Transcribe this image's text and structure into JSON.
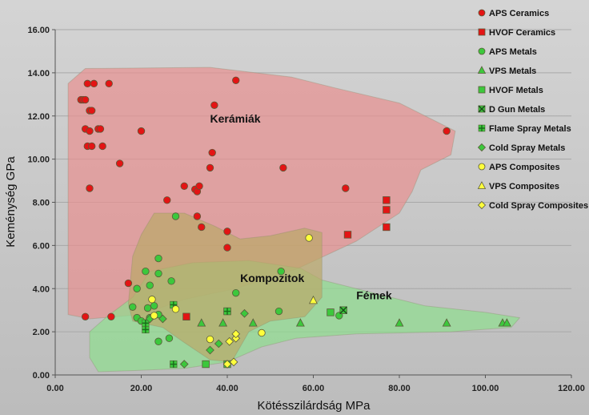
{
  "chart_data": {
    "type": "scatter",
    "title": "",
    "xlabel": "Kötésszilárdság MPa",
    "ylabel": "Keménység GPa",
    "xlim": [
      0,
      120
    ],
    "ylim": [
      0,
      16
    ],
    "x_ticks": [
      "0.00",
      "20.00",
      "40.00",
      "60.00",
      "80.00",
      "100.00",
      "120.00"
    ],
    "y_ticks": [
      "0.00",
      "2.00",
      "4.00",
      "6.00",
      "8.00",
      "10.00",
      "12.00",
      "14.00",
      "16.00"
    ],
    "grid": true,
    "legend_position": "right",
    "regions": [
      {
        "name": "Kerámiák",
        "color": "#e89090",
        "label_at": [
          36,
          11.7
        ],
        "polygon": [
          [
            7,
            14.2
          ],
          [
            36,
            14.25
          ],
          [
            55,
            13.8
          ],
          [
            65,
            13.3
          ],
          [
            80,
            12.6
          ],
          [
            93,
            11.3
          ],
          [
            92,
            10.2
          ],
          [
            85,
            9.5
          ],
          [
            83,
            8.5
          ],
          [
            80,
            7.5
          ],
          [
            70,
            6.2
          ],
          [
            56,
            4.9
          ],
          [
            42,
            4
          ],
          [
            30,
            3.5
          ],
          [
            20,
            2.8
          ],
          [
            8,
            2.6
          ],
          [
            3,
            2.8
          ],
          [
            3,
            8
          ],
          [
            3,
            13.5
          ]
        ]
      },
      {
        "name": "Fémek",
        "color": "#8fde8f",
        "label_at": [
          70,
          3.5
        ],
        "polygon": [
          [
            22,
            4.8
          ],
          [
            32,
            5.2
          ],
          [
            45,
            5.3
          ],
          [
            57,
            4.95
          ],
          [
            62,
            4.4
          ],
          [
            70,
            4
          ],
          [
            86,
            3.2
          ],
          [
            100,
            2.9
          ],
          [
            108,
            2.65
          ],
          [
            106,
            2.2
          ],
          [
            92,
            2
          ],
          [
            70,
            1.9
          ],
          [
            56,
            1.7
          ],
          [
            48,
            1.3
          ],
          [
            40,
            0.6
          ],
          [
            30,
            0.3
          ],
          [
            18,
            0.2
          ],
          [
            10,
            0.15
          ],
          [
            8,
            0.8
          ],
          [
            8,
            2
          ],
          [
            12,
            2.7
          ],
          [
            18,
            3.6
          ]
        ]
      },
      {
        "name": "Kompozitok",
        "color": "#bba868",
        "label_at": [
          43,
          4.3
        ],
        "polygon": [
          [
            20,
            6.5
          ],
          [
            23,
            7.5
          ],
          [
            30,
            7.5
          ],
          [
            37,
            6.9
          ],
          [
            43,
            6.3
          ],
          [
            50,
            6.45
          ],
          [
            58,
            6.8
          ],
          [
            62,
            6.6
          ],
          [
            62,
            5.5
          ],
          [
            62,
            4.8
          ],
          [
            62,
            3.6
          ],
          [
            58,
            2.7
          ],
          [
            50,
            2.5
          ],
          [
            45,
            2
          ],
          [
            41,
            0.6
          ],
          [
            36,
            0.7
          ],
          [
            30,
            1.5
          ],
          [
            25,
            2.2
          ],
          [
            18,
            2.5
          ],
          [
            17,
            3.3
          ],
          [
            18,
            5.5
          ]
        ]
      }
    ],
    "series": [
      {
        "name": "APS Ceramics",
        "marker": "circle",
        "color": "#e31414",
        "points": [
          [
            7,
            2.7
          ],
          [
            7,
            11.4
          ],
          [
            7.5,
            10.6
          ],
          [
            7.5,
            13.5
          ],
          [
            6,
            12.75
          ],
          [
            6.5,
            12.75
          ],
          [
            7,
            12.75
          ],
          [
            8,
            11.3
          ],
          [
            8,
            12.25
          ],
          [
            8.5,
            12.25
          ],
          [
            8.5,
            10.6
          ],
          [
            9,
            13.5
          ],
          [
            8,
            8.65
          ],
          [
            10,
            11.4
          ],
          [
            10.5,
            11.4
          ],
          [
            11,
            10.6
          ],
          [
            12.5,
            13.5
          ],
          [
            13,
            2.7
          ],
          [
            15,
            9.8
          ],
          [
            17,
            4.25
          ],
          [
            20,
            11.3
          ],
          [
            26,
            8.1
          ],
          [
            30,
            8.75
          ],
          [
            32.5,
            8.6
          ],
          [
            33,
            7.35
          ],
          [
            33,
            8.5
          ],
          [
            33.5,
            8.75
          ],
          [
            34,
            6.85
          ],
          [
            36,
            9.6
          ],
          [
            36.5,
            10.3
          ],
          [
            37,
            12.5
          ],
          [
            40,
            6.65
          ],
          [
            40,
            5.9
          ],
          [
            42,
            13.65
          ],
          [
            53,
            9.6
          ],
          [
            67.5,
            8.65
          ],
          [
            91,
            11.3
          ]
        ]
      },
      {
        "name": "HVOF Ceramics",
        "marker": "square",
        "color": "#e31414",
        "points": [
          [
            30.5,
            2.7
          ],
          [
            68,
            6.5
          ],
          [
            77,
            8.1
          ],
          [
            77,
            7.65
          ],
          [
            77,
            6.85
          ]
        ]
      },
      {
        "name": "APS Metals",
        "marker": "circle",
        "color": "#3cc83c",
        "points": [
          [
            18,
            3.15
          ],
          [
            19,
            4
          ],
          [
            19,
            2.65
          ],
          [
            20,
            2.5
          ],
          [
            21,
            4.8
          ],
          [
            21.5,
            3.1
          ],
          [
            22,
            4.15
          ],
          [
            22,
            2.65
          ],
          [
            23,
            3.2
          ],
          [
            24,
            2.8
          ],
          [
            24,
            5.4
          ],
          [
            24,
            4.7
          ],
          [
            24,
            1.55
          ],
          [
            26.5,
            1.7
          ],
          [
            27,
            4.35
          ],
          [
            28,
            7.35
          ],
          [
            42,
            3.8
          ],
          [
            52,
            2.95
          ],
          [
            52.5,
            4.8
          ],
          [
            66,
            2.75
          ]
        ]
      },
      {
        "name": "VPS Metals",
        "marker": "triangle",
        "color": "#3cc83c",
        "points": [
          [
            34,
            2.4
          ],
          [
            39,
            2.4
          ],
          [
            46,
            2.4
          ],
          [
            57,
            2.4
          ],
          [
            80,
            2.4
          ],
          [
            91,
            2.4
          ],
          [
            104,
            2.4
          ],
          [
            105,
            2.4
          ]
        ]
      },
      {
        "name": "HVOF Metals",
        "marker": "square",
        "color": "#3cc83c",
        "points": [
          [
            35,
            0.5
          ],
          [
            40,
            2.95
          ],
          [
            40,
            0.5
          ],
          [
            64,
            2.9
          ]
        ]
      },
      {
        "name": "D Gun Metals",
        "marker": "square-x",
        "color": "#3cc83c",
        "points": [
          [
            67,
            3
          ]
        ]
      },
      {
        "name": "Flame Spray Metals",
        "marker": "cross",
        "color": "#3cc83c",
        "points": [
          [
            21,
            2.1
          ],
          [
            21,
            2.4
          ],
          [
            27.5,
            0.5
          ],
          [
            27.5,
            3.25
          ],
          [
            40,
            2.95
          ]
        ]
      },
      {
        "name": "Cold Spray Metals",
        "marker": "diamond",
        "color": "#3cc83c",
        "points": [
          [
            22,
            2.6
          ],
          [
            25,
            2.6
          ],
          [
            30,
            0.5
          ],
          [
            36,
            1.15
          ],
          [
            38,
            1.45
          ],
          [
            44,
            2.85
          ]
        ]
      },
      {
        "name": "APS Composites",
        "marker": "circle",
        "color": "#ffff3c",
        "points": [
          [
            22.5,
            3.5
          ],
          [
            23,
            2.75
          ],
          [
            28,
            3.05
          ],
          [
            36,
            1.65
          ],
          [
            48,
            1.95
          ],
          [
            59,
            6.35
          ]
        ]
      },
      {
        "name": "VPS Composites",
        "marker": "triangle",
        "color": "#ffff3c",
        "points": [
          [
            60,
            3.45
          ]
        ]
      },
      {
        "name": "Cold Spray Composites",
        "marker": "diamond",
        "color": "#ffff3c",
        "points": [
          [
            40,
            0.5
          ],
          [
            40.5,
            1.55
          ],
          [
            41.5,
            0.6
          ],
          [
            42,
            1.7
          ],
          [
            42,
            1.9
          ]
        ]
      }
    ]
  }
}
